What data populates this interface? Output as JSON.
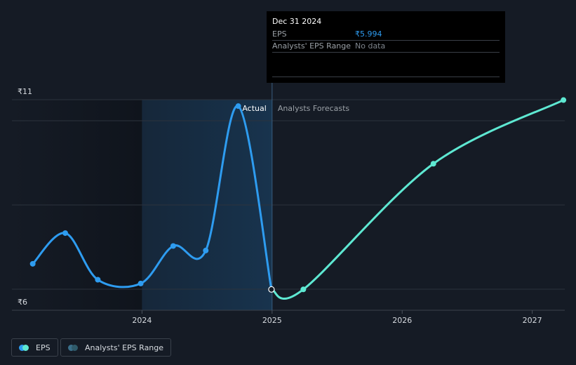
{
  "chart_data": {
    "type": "line",
    "y_ticks": [
      {
        "label": "₹11",
        "value": 11
      },
      {
        "label": "₹6",
        "value": 6
      }
    ],
    "x_ticks": [
      {
        "label": "2024",
        "value": 2024.0
      },
      {
        "label": "2025",
        "value": 2025.0
      },
      {
        "label": "2026",
        "value": 2026.0
      },
      {
        "label": "2027",
        "value": 2027.0
      }
    ],
    "ylim": [
      6,
      11
    ],
    "xlim": [
      2023.0,
      2027.25
    ],
    "section_labels": {
      "actual": "Actual",
      "forecast": "Analysts Forecasts"
    },
    "divider_x": 2025.0,
    "series": [
      {
        "name": "EPS",
        "color": "#2e9cf0",
        "points": [
          {
            "x": 2023.16,
            "y": 6.67
          },
          {
            "x": 2023.41,
            "y": 7.48
          },
          {
            "x": 2023.66,
            "y": 6.25
          },
          {
            "x": 2023.99,
            "y": 6.15
          },
          {
            "x": 2024.24,
            "y": 7.14
          },
          {
            "x": 2024.49,
            "y": 7.02
          },
          {
            "x": 2024.74,
            "y": 10.83
          },
          {
            "x": 2024.995,
            "y": 5.994
          }
        ]
      },
      {
        "name": "EPS forecast",
        "color": "#5ee8d2",
        "points": [
          {
            "x": 2024.995,
            "y": 5.994
          },
          {
            "x": 2025.24,
            "y": 5.995
          },
          {
            "x": 2026.24,
            "y": 9.31
          },
          {
            "x": 2027.24,
            "y": 10.99
          }
        ]
      }
    ],
    "highlighted_point": {
      "x": 2024.995,
      "y": 5.994
    }
  },
  "tooltip": {
    "date": "Dec 31 2024",
    "rows": [
      {
        "label": "EPS",
        "value": "₹5.994",
        "color": "#2e9cf0"
      },
      {
        "label": "Analysts' EPS Range",
        "value": "No data",
        "color": "#7e848c"
      }
    ]
  },
  "legend": {
    "items": [
      {
        "label": "EPS",
        "colors": [
          "#2e9cf0",
          "#5ee8d2"
        ]
      },
      {
        "label": "Analysts' EPS Range",
        "colors": [
          "#3a6f8a",
          "#2f5a6a"
        ]
      }
    ]
  }
}
